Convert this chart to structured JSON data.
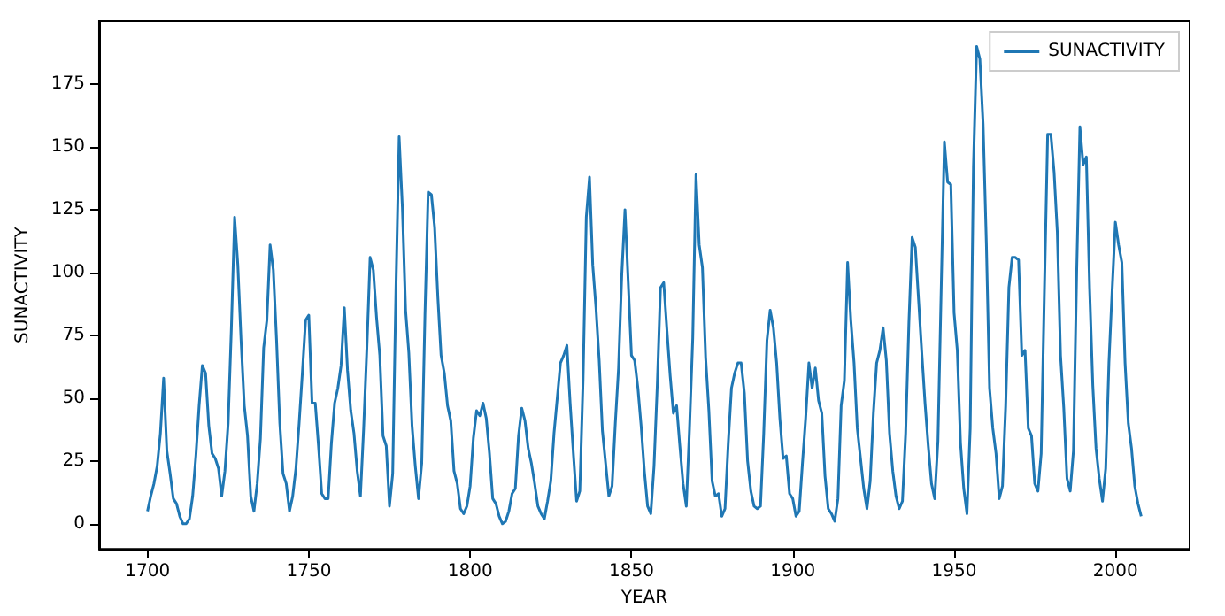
{
  "chart_data": {
    "type": "line",
    "xlabel": "YEAR",
    "ylabel": "SUNACTIVITY",
    "x": [
      1700,
      1701,
      1702,
      1703,
      1704,
      1705,
      1706,
      1707,
      1708,
      1709,
      1710,
      1711,
      1712,
      1713,
      1714,
      1715,
      1716,
      1717,
      1718,
      1719,
      1720,
      1721,
      1722,
      1723,
      1724,
      1725,
      1726,
      1727,
      1728,
      1729,
      1730,
      1731,
      1732,
      1733,
      1734,
      1735,
      1736,
      1737,
      1738,
      1739,
      1740,
      1741,
      1742,
      1743,
      1744,
      1745,
      1746,
      1747,
      1748,
      1749,
      1750,
      1751,
      1752,
      1753,
      1754,
      1755,
      1756,
      1757,
      1758,
      1759,
      1760,
      1761,
      1762,
      1763,
      1764,
      1765,
      1766,
      1767,
      1768,
      1769,
      1770,
      1771,
      1772,
      1773,
      1774,
      1775,
      1776,
      1777,
      1778,
      1779,
      1780,
      1781,
      1782,
      1783,
      1784,
      1785,
      1786,
      1787,
      1788,
      1789,
      1790,
      1791,
      1792,
      1793,
      1794,
      1795,
      1796,
      1797,
      1798,
      1799,
      1800,
      1801,
      1802,
      1803,
      1804,
      1805,
      1806,
      1807,
      1808,
      1809,
      1810,
      1811,
      1812,
      1813,
      1814,
      1815,
      1816,
      1817,
      1818,
      1819,
      1820,
      1821,
      1822,
      1823,
      1824,
      1825,
      1826,
      1827,
      1828,
      1829,
      1830,
      1831,
      1832,
      1833,
      1834,
      1835,
      1836,
      1837,
      1838,
      1839,
      1840,
      1841,
      1842,
      1843,
      1844,
      1845,
      1846,
      1847,
      1848,
      1849,
      1850,
      1851,
      1852,
      1853,
      1854,
      1855,
      1856,
      1857,
      1858,
      1859,
      1860,
      1861,
      1862,
      1863,
      1864,
      1865,
      1866,
      1867,
      1868,
      1869,
      1870,
      1871,
      1872,
      1873,
      1874,
      1875,
      1876,
      1877,
      1878,
      1879,
      1880,
      1881,
      1882,
      1883,
      1884,
      1885,
      1886,
      1887,
      1888,
      1889,
      1890,
      1891,
      1892,
      1893,
      1894,
      1895,
      1896,
      1897,
      1898,
      1899,
      1900,
      1901,
      1902,
      1903,
      1904,
      1905,
      1906,
      1907,
      1908,
      1909,
      1910,
      1911,
      1912,
      1913,
      1914,
      1915,
      1916,
      1917,
      1918,
      1919,
      1920,
      1921,
      1922,
      1923,
      1924,
      1925,
      1926,
      1927,
      1928,
      1929,
      1930,
      1931,
      1932,
      1933,
      1934,
      1935,
      1936,
      1937,
      1938,
      1939,
      1940,
      1941,
      1942,
      1943,
      1944,
      1945,
      1946,
      1947,
      1948,
      1949,
      1950,
      1951,
      1952,
      1953,
      1954,
      1955,
      1956,
      1957,
      1958,
      1959,
      1960,
      1961,
      1962,
      1963,
      1964,
      1965,
      1966,
      1967,
      1968,
      1969,
      1970,
      1971,
      1972,
      1973,
      1974,
      1975,
      1976,
      1977,
      1978,
      1979,
      1980,
      1981,
      1982,
      1983,
      1984,
      1985,
      1986,
      1987,
      1988,
      1989,
      1990,
      1991,
      1992,
      1993,
      1994,
      1995,
      1996,
      1997,
      1998,
      1999,
      2000,
      2001,
      2002,
      2003,
      2004,
      2005,
      2006,
      2007,
      2008
    ],
    "series": [
      {
        "name": "SUNACTIVITY",
        "color": "#1f77b4",
        "values": [
          5,
          11,
          16,
          23,
          36,
          58,
          29,
          20,
          10,
          8,
          3,
          0,
          0,
          2,
          11,
          27,
          47,
          63,
          60,
          39,
          28,
          26,
          22,
          11,
          21,
          40,
          78,
          122,
          103,
          73,
          47,
          35,
          11,
          5,
          16,
          34,
          70,
          81,
          111,
          101,
          73,
          40,
          20,
          16,
          5,
          11,
          22,
          40,
          60,
          81,
          83,
          48,
          48,
          31,
          12,
          10,
          10,
          32,
          48,
          54,
          63,
          86,
          61,
          45,
          36,
          21,
          11,
          38,
          70,
          106,
          101,
          82,
          67,
          35,
          31,
          7,
          20,
          93,
          154,
          126,
          85,
          68,
          39,
          23,
          10,
          24,
          83,
          132,
          131,
          118,
          90,
          67,
          60,
          47,
          41,
          21,
          16,
          6,
          4,
          7,
          15,
          34,
          45,
          43,
          48,
          42,
          28,
          10,
          8,
          3,
          0,
          1,
          5,
          12,
          14,
          35,
          46,
          41,
          30,
          24,
          16,
          7,
          4,
          2,
          9,
          17,
          36,
          50,
          64,
          67,
          71,
          48,
          28,
          9,
          13,
          57,
          122,
          138,
          103,
          86,
          65,
          37,
          24,
          11,
          15,
          40,
          62,
          99,
          125,
          96,
          67,
          65,
          54,
          39,
          21,
          7,
          4,
          23,
          55,
          94,
          96,
          77,
          59,
          44,
          47,
          31,
          16,
          7,
          38,
          74,
          139,
          111,
          102,
          66,
          45,
          17,
          11,
          12,
          3,
          6,
          32,
          54,
          60,
          64,
          64,
          52,
          25,
          13,
          7,
          6,
          7,
          36,
          73,
          85,
          78,
          64,
          42,
          26,
          27,
          12,
          10,
          3,
          5,
          24,
          42,
          64,
          54,
          62,
          49,
          44,
          19,
          6,
          4,
          1,
          10,
          47,
          57,
          104,
          81,
          64,
          38,
          26,
          14,
          6,
          17,
          44,
          64,
          69,
          78,
          65,
          36,
          21,
          11,
          6,
          9,
          36,
          80,
          114,
          110,
          89,
          68,
          48,
          31,
          16,
          10,
          33,
          93,
          152,
          136,
          135,
          84,
          69,
          32,
          14,
          4,
          38,
          142,
          190,
          185,
          159,
          112,
          54,
          38,
          28,
          10,
          15,
          47,
          94,
          106,
          106,
          105,
          67,
          69,
          38,
          35,
          16,
          13,
          28,
          93,
          155,
          155,
          140,
          116,
          67,
          46,
          18,
          13,
          29,
          100,
          158,
          143,
          146,
          94,
          55,
          30,
          18,
          9,
          22,
          64,
          93,
          120,
          111,
          104,
          64,
          40,
          30,
          15,
          8,
          3
        ]
      }
    ],
    "xlim": [
      1685,
      2023
    ],
    "xticks": [
      1700,
      1750,
      1800,
      1850,
      1900,
      1950,
      2000
    ],
    "ylim": [
      -10,
      200
    ],
    "yticks": [
      0,
      25,
      50,
      75,
      100,
      125,
      150,
      175
    ],
    "legend": "top right"
  }
}
